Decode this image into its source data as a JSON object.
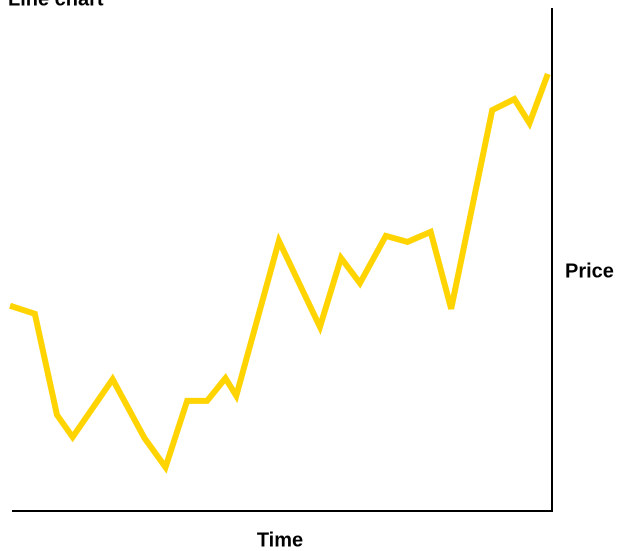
{
  "chart_data": {
    "type": "line",
    "title": "Line chart",
    "xlabel": "Time",
    "ylabel": "Price",
    "x": [
      0,
      4.6,
      8.7,
      11.6,
      19.0,
      24.9,
      28.8,
      32.8,
      36.5,
      39.9,
      41.9,
      49.8,
      57.4,
      61.3,
      64.8,
      69.6,
      73.6,
      77.9,
      81.7,
      89.3,
      93.4,
      96.2,
      99.6
    ],
    "series": [
      {
        "name": "Price",
        "color": "#ffd400",
        "values": [
          40.8,
          39.2,
          19.1,
          14.7,
          26.2,
          14.5,
          8.7,
          21.9,
          21.9,
          26.4,
          22.9,
          53.7,
          36.6,
          50.3,
          45.3,
          54.7,
          53.5,
          55.5,
          40.2,
          79.7,
          81.9,
          77.1,
          86.9
        ]
      }
    ],
    "xlim": [
      0,
      100
    ],
    "ylim": [
      0,
      100
    ]
  }
}
